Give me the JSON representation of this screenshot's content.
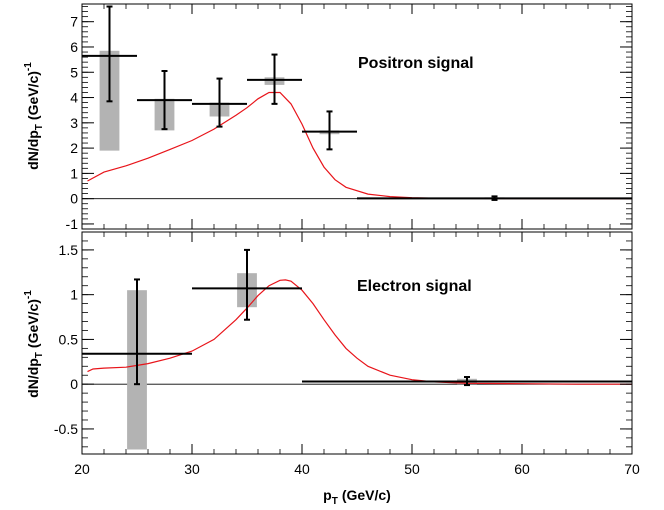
{
  "chart_data": [
    {
      "type": "bar",
      "panel": "top",
      "annotation": "Positron signal",
      "ylabel": "dN/dp",
      "ylabel_sub": "T",
      "ylabel_units": "(GeV/c)",
      "ylabel_sup": "-1",
      "xlim": [
        20,
        70
      ],
      "ylim": [
        -1.2,
        7.7
      ],
      "yticks": [
        -1,
        0,
        1,
        2,
        3,
        4,
        5,
        6,
        7
      ],
      "ytick_labels": [
        "-1",
        "0",
        "1",
        "2",
        "3",
        "4",
        "5",
        "6",
        "7"
      ],
      "zero_line": 0,
      "points": [
        {
          "x": 22.5,
          "xlo": 20,
          "xhi": 25,
          "y": 5.65,
          "ylo": 3.85,
          "yhi": 7.6,
          "syslo": 1.9,
          "syshi": 5.85
        },
        {
          "x": 27.5,
          "xlo": 25,
          "xhi": 30,
          "y": 3.9,
          "ylo": 2.75,
          "yhi": 5.05,
          "syslo": 2.7,
          "syshi": 3.95
        },
        {
          "x": 32.5,
          "xlo": 30,
          "xhi": 35,
          "y": 3.75,
          "ylo": 2.85,
          "yhi": 4.75,
          "syslo": 3.25,
          "syshi": 3.8
        },
        {
          "x": 37.5,
          "xlo": 35,
          "xhi": 40,
          "y": 4.7,
          "ylo": 3.75,
          "yhi": 5.7,
          "syslo": 4.5,
          "syshi": 4.8
        },
        {
          "x": 42.5,
          "xlo": 40,
          "xhi": 45,
          "y": 2.65,
          "ylo": 1.95,
          "yhi": 3.45,
          "syslo": 2.55,
          "syshi": 2.7
        },
        {
          "x": 57.5,
          "xlo": 45,
          "xhi": 70,
          "y": 0.01,
          "ylo": -0.05,
          "yhi": 0.09,
          "syslo": -0.03,
          "syshi": 0.05
        }
      ],
      "curve": {
        "x": [
          20.5,
          22,
          24,
          26,
          28,
          30,
          32,
          34,
          35,
          36,
          37,
          38,
          39,
          40,
          41,
          42,
          43,
          44,
          46,
          48,
          50,
          52,
          55,
          60,
          65,
          70
        ],
        "y": [
          0.7,
          1.05,
          1.3,
          1.6,
          1.95,
          2.3,
          2.75,
          3.3,
          3.6,
          3.95,
          4.2,
          4.2,
          3.75,
          2.95,
          2.0,
          1.25,
          0.75,
          0.45,
          0.18,
          0.08,
          0.04,
          0.02,
          0.01,
          0.005,
          0.0,
          0.0
        ]
      }
    },
    {
      "type": "bar",
      "panel": "bottom",
      "annotation": "Electron signal",
      "ylabel": "dN/dp",
      "ylabel_sub": "T",
      "ylabel_units": "(GeV/c)",
      "ylabel_sup": "-1",
      "xlabel": "p",
      "xlabel_sub": "T",
      "xlabel_units": "(GeV/c)",
      "xlim": [
        20,
        70
      ],
      "ylim": [
        -0.78,
        1.7
      ],
      "yticks": [
        -0.5,
        0,
        0.5,
        1,
        1.5
      ],
      "ytick_labels": [
        "-0.5",
        "0",
        "0.5",
        "1",
        "1.5"
      ],
      "xticks": [
        20,
        30,
        40,
        50,
        60,
        70
      ],
      "xtick_labels": [
        "20",
        "30",
        "40",
        "50",
        "60",
        "70"
      ],
      "zero_line": 0,
      "points": [
        {
          "x": 25,
          "xlo": 20,
          "xhi": 30,
          "y": 0.34,
          "ylo": 0.0,
          "yhi": 1.17,
          "syslo": -0.73,
          "syshi": 1.05
        },
        {
          "x": 35,
          "xlo": 30,
          "xhi": 40,
          "y": 1.07,
          "ylo": 0.72,
          "yhi": 1.5,
          "syslo": 0.86,
          "syshi": 1.24
        },
        {
          "x": 55,
          "xlo": 40,
          "xhi": 70,
          "y": 0.03,
          "ylo": -0.01,
          "yhi": 0.08,
          "syslo": 0.0,
          "syshi": 0.06
        }
      ],
      "curve": {
        "x": [
          20.5,
          21,
          22,
          24,
          26,
          28,
          30,
          32,
          34,
          35,
          36,
          37,
          38,
          38.5,
          39,
          40,
          41,
          42,
          43,
          44,
          45,
          46,
          48,
          50,
          52,
          55,
          60,
          65,
          70
        ],
        "y": [
          0.14,
          0.17,
          0.18,
          0.19,
          0.23,
          0.29,
          0.37,
          0.5,
          0.72,
          0.85,
          0.99,
          1.1,
          1.16,
          1.165,
          1.15,
          1.05,
          0.9,
          0.72,
          0.55,
          0.4,
          0.29,
          0.2,
          0.1,
          0.05,
          0.025,
          0.01,
          0.005,
          0.0,
          0.0
        ]
      }
    }
  ],
  "colors": {
    "curve": "#e8141a",
    "sys_band": "#b3b3b3",
    "points": "#000000"
  }
}
